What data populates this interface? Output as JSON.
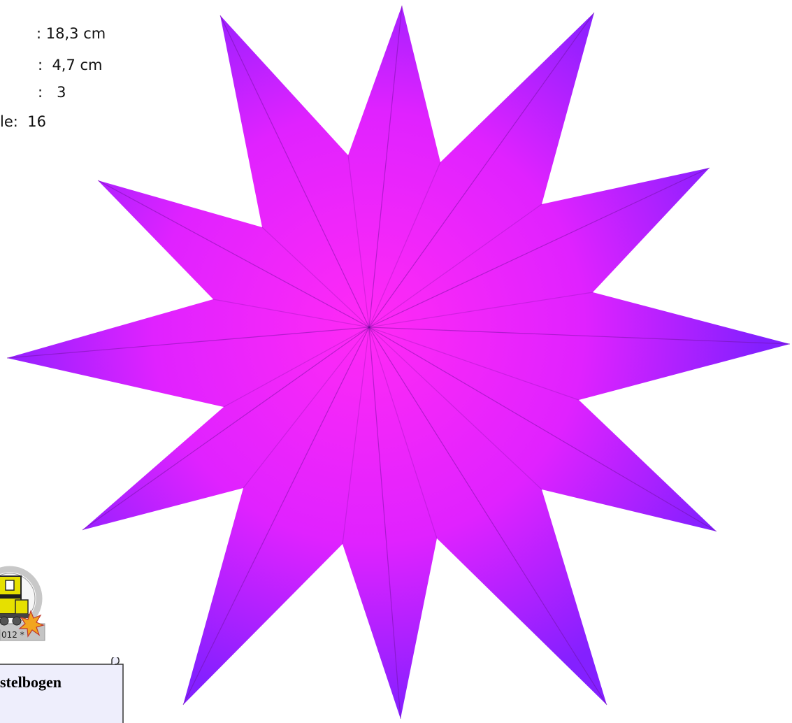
{
  "specs": [
    {
      "label": "",
      "separator": ":",
      "value": "18,3 cm"
    },
    {
      "label": "",
      "separator": ":",
      "value": "4,7 cm"
    },
    {
      "label": "",
      "separator": ":",
      "value": "3"
    },
    {
      "label": "le",
      "separator": ":",
      "value": "16"
    }
  ],
  "logo": {
    "year_text": "012 *",
    "colors": {
      "ring": "#c8c8c8",
      "locomotive": "#e6e000",
      "star": "#f0a020"
    }
  },
  "banner": {
    "text": "stelbogen",
    "colors": {
      "fill": "#eeeefc",
      "border": "#333333"
    }
  },
  "star": {
    "points": 12,
    "colors": {
      "center": "#ff2af0",
      "edge": "#8a1cff",
      "crease": "#7a1aa8"
    }
  }
}
